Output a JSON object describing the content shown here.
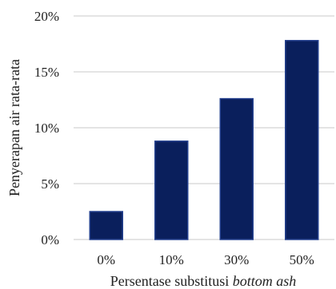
{
  "chart_data": {
    "type": "bar",
    "categories": [
      "0%",
      "10%",
      "30%",
      "50%"
    ],
    "values": [
      2.5,
      8.8,
      12.6,
      17.8
    ],
    "ylim": [
      0,
      20
    ],
    "yticks": [
      "0%",
      "5%",
      "10%",
      "15%",
      "20%"
    ],
    "ytick_values": [
      0,
      5,
      10,
      15,
      20
    ],
    "ylabel": "Penyerapan air rata-rata",
    "xlabel_prefix": "Persentase substitusi ",
    "xlabel_italic": "bottom ash",
    "grid": true,
    "colors": {
      "bar": "#0a1f5c",
      "grid": "#c8c8c8"
    }
  }
}
